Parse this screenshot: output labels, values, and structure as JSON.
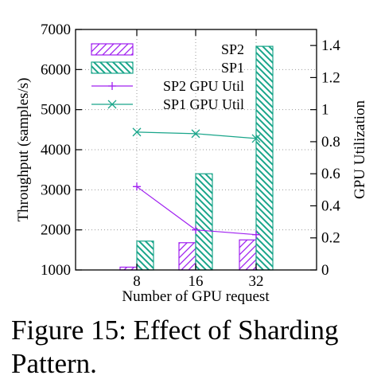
{
  "caption": {
    "label": "Figure 15:",
    "text": "Effect of Sharding Pattern."
  },
  "chart_data": {
    "type": "bar",
    "categories": [
      "8",
      "16",
      "32"
    ],
    "xlabel": "Number of GPU request",
    "ylabel": "Throughput (samples/s)",
    "y2label": "GPU Utilization",
    "ylim": [
      1000,
      7000
    ],
    "y2lim": [
      0,
      1.5
    ],
    "yticks": [
      1000,
      2000,
      3000,
      4000,
      5000,
      6000,
      7000
    ],
    "y2ticks": [
      "0",
      "0.2",
      "0.4",
      "0.6",
      "0.8",
      "1",
      "1.2",
      "1.4"
    ],
    "y2tick_values": [
      0,
      0.2,
      0.4,
      0.6,
      0.8,
      1.0,
      1.2,
      1.4
    ],
    "grid": true,
    "legend_position": "top-right",
    "series": [
      {
        "name": "SP2",
        "kind": "bar",
        "axis": "left",
        "color": "#a020f0",
        "pattern": "hatch-forward",
        "values": [
          1070,
          1680,
          1750
        ]
      },
      {
        "name": "SP1",
        "kind": "bar",
        "axis": "left",
        "color": "#19a58a",
        "pattern": "hatch-back",
        "values": [
          1720,
          3400,
          6580
        ]
      },
      {
        "name": "SP2 GPU Util",
        "kind": "line",
        "axis": "right",
        "color": "#a020f0",
        "marker": "plus",
        "values": [
          0.52,
          0.25,
          0.22
        ]
      },
      {
        "name": "SP1 GPU Util",
        "kind": "line",
        "axis": "right",
        "color": "#19a58a",
        "marker": "cross",
        "values": [
          0.86,
          0.85,
          0.82
        ]
      }
    ]
  }
}
